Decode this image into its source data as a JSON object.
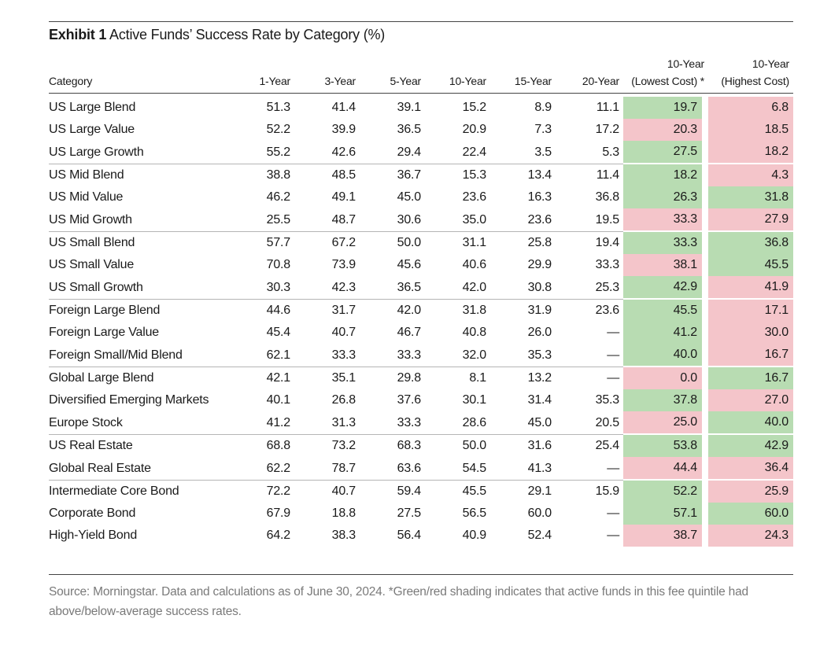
{
  "title": {
    "exhibit": "Exhibit 1",
    "text": "Active Funds’ Success Rate by Category (%)"
  },
  "chart_data": {
    "type": "table",
    "title": "Exhibit 1 Active Funds’ Success Rate by Category (%)",
    "columns": [
      {
        "line1": "",
        "line2": "Category"
      },
      {
        "line1": "",
        "line2": "1-Year"
      },
      {
        "line1": "",
        "line2": "3-Year"
      },
      {
        "line1": "",
        "line2": "5-Year"
      },
      {
        "line1": "",
        "line2": "10-Year"
      },
      {
        "line1": "",
        "line2": "15-Year"
      },
      {
        "line1": "",
        "line2": "20-Year"
      },
      {
        "line1": "10-Year",
        "line2": "(Lowest Cost) *"
      },
      {
        "line1": "10-Year",
        "line2": "(Highest Cost)"
      }
    ],
    "groups": [
      [
        {
          "category": "US Large Blend",
          "values": [
            "51.3",
            "41.4",
            "39.1",
            "15.2",
            "8.9",
            "11.1"
          ],
          "low": "19.7",
          "low_shade": "green",
          "high": "6.8",
          "high_shade": "red"
        },
        {
          "category": "US Large Value",
          "values": [
            "52.2",
            "39.9",
            "36.5",
            "20.9",
            "7.3",
            "17.2"
          ],
          "low": "20.3",
          "low_shade": "red",
          "high": "18.5",
          "high_shade": "red"
        },
        {
          "category": "US Large Growth",
          "values": [
            "55.2",
            "42.6",
            "29.4",
            "22.4",
            "3.5",
            "5.3"
          ],
          "low": "27.5",
          "low_shade": "green",
          "high": "18.2",
          "high_shade": "red"
        }
      ],
      [
        {
          "category": "US Mid Blend",
          "values": [
            "38.8",
            "48.5",
            "36.7",
            "15.3",
            "13.4",
            "11.4"
          ],
          "low": "18.2",
          "low_shade": "green",
          "high": "4.3",
          "high_shade": "red"
        },
        {
          "category": "US Mid Value",
          "values": [
            "46.2",
            "49.1",
            "45.0",
            "23.6",
            "16.3",
            "36.8"
          ],
          "low": "26.3",
          "low_shade": "green",
          "high": "31.8",
          "high_shade": "green"
        },
        {
          "category": "US Mid Growth",
          "values": [
            "25.5",
            "48.7",
            "30.6",
            "35.0",
            "23.6",
            "19.5"
          ],
          "low": "33.3",
          "low_shade": "red",
          "high": "27.9",
          "high_shade": "red"
        }
      ],
      [
        {
          "category": "US Small Blend",
          "values": [
            "57.7",
            "67.2",
            "50.0",
            "31.1",
            "25.8",
            "19.4"
          ],
          "low": "33.3",
          "low_shade": "green",
          "high": "36.8",
          "high_shade": "green"
        },
        {
          "category": "US Small Value",
          "values": [
            "70.8",
            "73.9",
            "45.6",
            "40.6",
            "29.9",
            "33.3"
          ],
          "low": "38.1",
          "low_shade": "red",
          "high": "45.5",
          "high_shade": "green"
        },
        {
          "category": "US Small Growth",
          "values": [
            "30.3",
            "42.3",
            "36.5",
            "42.0",
            "30.8",
            "25.3"
          ],
          "low": "42.9",
          "low_shade": "green",
          "high": "41.9",
          "high_shade": "red"
        }
      ],
      [
        {
          "category": "Foreign Large Blend",
          "values": [
            "44.6",
            "31.7",
            "42.0",
            "31.8",
            "31.9",
            "23.6"
          ],
          "low": "45.5",
          "low_shade": "green",
          "high": "17.1",
          "high_shade": "red"
        },
        {
          "category": "Foreign Large Value",
          "values": [
            "45.4",
            "40.7",
            "46.7",
            "40.8",
            "26.0",
            "—"
          ],
          "low": "41.2",
          "low_shade": "green",
          "high": "30.0",
          "high_shade": "red"
        },
        {
          "category": "Foreign Small/Mid Blend",
          "values": [
            "62.1",
            "33.3",
            "33.3",
            "32.0",
            "35.3",
            "—"
          ],
          "low": "40.0",
          "low_shade": "green",
          "high": "16.7",
          "high_shade": "red"
        }
      ],
      [
        {
          "category": "Global Large Blend",
          "values": [
            "42.1",
            "35.1",
            "29.8",
            "8.1",
            "13.2",
            "—"
          ],
          "low": "0.0",
          "low_shade": "red",
          "high": "16.7",
          "high_shade": "green"
        },
        {
          "category": "Diversified Emerging Markets",
          "values": [
            "40.1",
            "26.8",
            "37.6",
            "30.1",
            "31.4",
            "35.3"
          ],
          "low": "37.8",
          "low_shade": "green",
          "high": "27.0",
          "high_shade": "red"
        },
        {
          "category": "Europe Stock",
          "values": [
            "41.2",
            "31.3",
            "33.3",
            "28.6",
            "45.0",
            "20.5"
          ],
          "low": "25.0",
          "low_shade": "red",
          "high": "40.0",
          "high_shade": "green"
        }
      ],
      [
        {
          "category": "US Real Estate",
          "values": [
            "68.8",
            "73.2",
            "68.3",
            "50.0",
            "31.6",
            "25.4"
          ],
          "low": "53.8",
          "low_shade": "green",
          "high": "42.9",
          "high_shade": "green"
        },
        {
          "category": "Global Real Estate",
          "values": [
            "62.2",
            "78.7",
            "63.6",
            "54.5",
            "41.3",
            "—"
          ],
          "low": "44.4",
          "low_shade": "red",
          "high": "36.4",
          "high_shade": "red"
        }
      ],
      [
        {
          "category": "Intermediate Core Bond",
          "values": [
            "72.2",
            "40.7",
            "59.4",
            "45.5",
            "29.1",
            "15.9"
          ],
          "low": "52.2",
          "low_shade": "green",
          "high": "25.9",
          "high_shade": "red"
        },
        {
          "category": "Corporate Bond",
          "values": [
            "67.9",
            "18.8",
            "27.5",
            "56.5",
            "60.0",
            "—"
          ],
          "low": "57.1",
          "low_shade": "green",
          "high": "60.0",
          "high_shade": "green"
        },
        {
          "category": "High-Yield Bond",
          "values": [
            "64.2",
            "38.3",
            "56.4",
            "40.9",
            "52.4",
            "—"
          ],
          "low": "38.7",
          "low_shade": "red",
          "high": "24.3",
          "high_shade": "red"
        }
      ]
    ]
  },
  "colors": {
    "green_shade": "#b8dcb2",
    "red_shade": "#f4c5ca"
  },
  "source": "Source: Morningstar. Data and calculations as of June 30, 2024. *Green/red shading indicates that active funds in this fee quintile had above/below-average success rates."
}
